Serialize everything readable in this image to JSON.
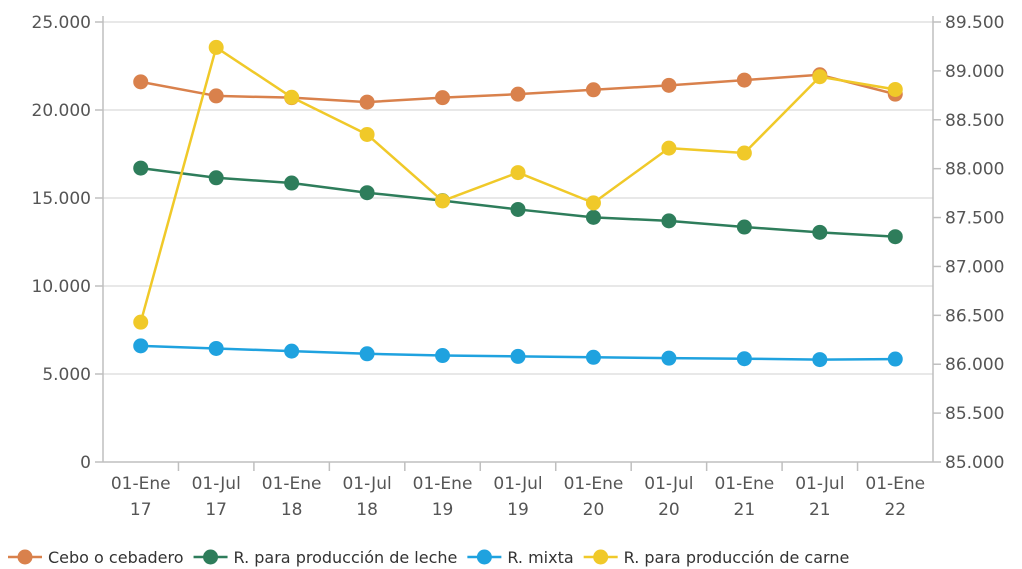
{
  "chart_data": {
    "type": "line",
    "title": "",
    "xlabel": "",
    "ylabel": "",
    "categories": [
      [
        "01-Ene",
        "17"
      ],
      [
        "01-Jul",
        "17"
      ],
      [
        "01-Ene",
        "18"
      ],
      [
        "01-Jul",
        "18"
      ],
      [
        "01-Ene",
        "19"
      ],
      [
        "01-Jul",
        "19"
      ],
      [
        "01-Ene",
        "20"
      ],
      [
        "01-Jul",
        "20"
      ],
      [
        "01-Ene",
        "21"
      ],
      [
        "01-Jul",
        "21"
      ],
      [
        "01-Ene",
        "22"
      ]
    ],
    "y_left": {
      "range": [
        0,
        25000
      ],
      "ticks": [
        0,
        5000,
        10000,
        15000,
        20000,
        25000
      ],
      "tick_labels": [
        "0",
        "5.000",
        "10.000",
        "15.000",
        "20.000",
        "25.000"
      ]
    },
    "y_right": {
      "range": [
        85000,
        89500
      ],
      "ticks": [
        85000,
        85500,
        86000,
        86500,
        87000,
        87500,
        88000,
        88500,
        89000,
        89500
      ],
      "tick_labels": [
        "85.000",
        "85.500",
        "86.000",
        "86.500",
        "87.000",
        "87.500",
        "88.000",
        "88.500",
        "89.000",
        "89.500"
      ]
    },
    "grid": "horizontal",
    "legend_position": "bottom",
    "series": [
      {
        "name": "Cebo o cebadero",
        "axis": "left",
        "color": "#D9814C",
        "values": [
          21600,
          20800,
          20700,
          20450,
          20700,
          20900,
          21150,
          21400,
          21700,
          22000,
          20900
        ]
      },
      {
        "name": "R. para producción de leche",
        "axis": "left",
        "color": "#2E7D5B",
        "values": [
          16700,
          16150,
          15850,
          15300,
          14850,
          14350,
          13900,
          13700,
          13350,
          13050,
          12800
        ]
      },
      {
        "name": "R. mixta",
        "axis": "left",
        "color": "#1FA2DF",
        "values": [
          6600,
          6450,
          6300,
          6150,
          6050,
          6000,
          5950,
          5900,
          5870,
          5820,
          5850
        ]
      },
      {
        "name": "R. para producción de carne",
        "axis": "right",
        "color": "#F0C929",
        "values": [
          86430,
          89240,
          88730,
          88350,
          87670,
          87960,
          87650,
          88210,
          88160,
          88940,
          88810
        ]
      }
    ]
  }
}
